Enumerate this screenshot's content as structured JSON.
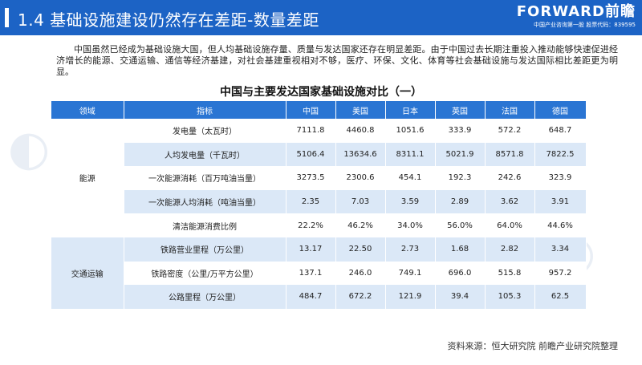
{
  "header": {
    "title": "1.4  基础设施建设仍然存在差距-数量差距",
    "logo_main": "FORWARD前瞻",
    "logo_sub": "中国产业咨询第一股 股票代码：839595"
  },
  "intro": "中国虽然已经成为基础设施大国，但人均基础设施存量、质量与发达国家还存在明显差距。由于中国过去长期注重投入推动能够快速促进经济增长的能源、交通运输、通信等经济基建，对社会基建重视相对不够，医疗、环保、文化、体育等社会基础设施与发达国际相比差距更为明显。",
  "table": {
    "title": "中国与主要发达国家基础设施对比（一）",
    "columns": [
      "领域",
      "指标",
      "中国",
      "美国",
      "日本",
      "英国",
      "法国",
      "德国"
    ],
    "domains": [
      "能源",
      "交通运输"
    ],
    "rows": [
      {
        "indicator": "发电量（太瓦时）",
        "values": [
          "7111.8",
          "4460.8",
          "1051.6",
          "333.9",
          "572.2",
          "648.7"
        ]
      },
      {
        "indicator": "人均发电量（千瓦时）",
        "values": [
          "5106.4",
          "13634.6",
          "8311.1",
          "5021.9",
          "8571.8",
          "7822.5"
        ]
      },
      {
        "indicator": "一次能源消耗（百万吨油当量）",
        "values": [
          "3273.5",
          "2300.6",
          "454.1",
          "192.3",
          "242.6",
          "323.9"
        ]
      },
      {
        "indicator": "一次能源人均消耗（吨油当量）",
        "values": [
          "2.35",
          "7.03",
          "3.59",
          "2.89",
          "3.62",
          "3.91"
        ]
      },
      {
        "indicator": "清洁能源消费比例",
        "values": [
          "22.2%",
          "46.2%",
          "34.0%",
          "56.0%",
          "64.0%",
          "44.6%"
        ]
      },
      {
        "indicator": "铁路营业里程（万公里）",
        "values": [
          "13.17",
          "22.50",
          "2.73",
          "1.68",
          "2.82",
          "3.34"
        ]
      },
      {
        "indicator": "铁路密度（公里/万平方公里）",
        "values": [
          "137.1",
          "246.0",
          "749.1",
          "696.0",
          "515.8",
          "957.2"
        ]
      },
      {
        "indicator": "公路里程（万公里）",
        "values": [
          "484.7",
          "672.2",
          "121.9",
          "39.4",
          "105.3",
          "62.5"
        ]
      }
    ]
  },
  "source": "资料来源：恒大研究院 前瞻产业研究院整理"
}
